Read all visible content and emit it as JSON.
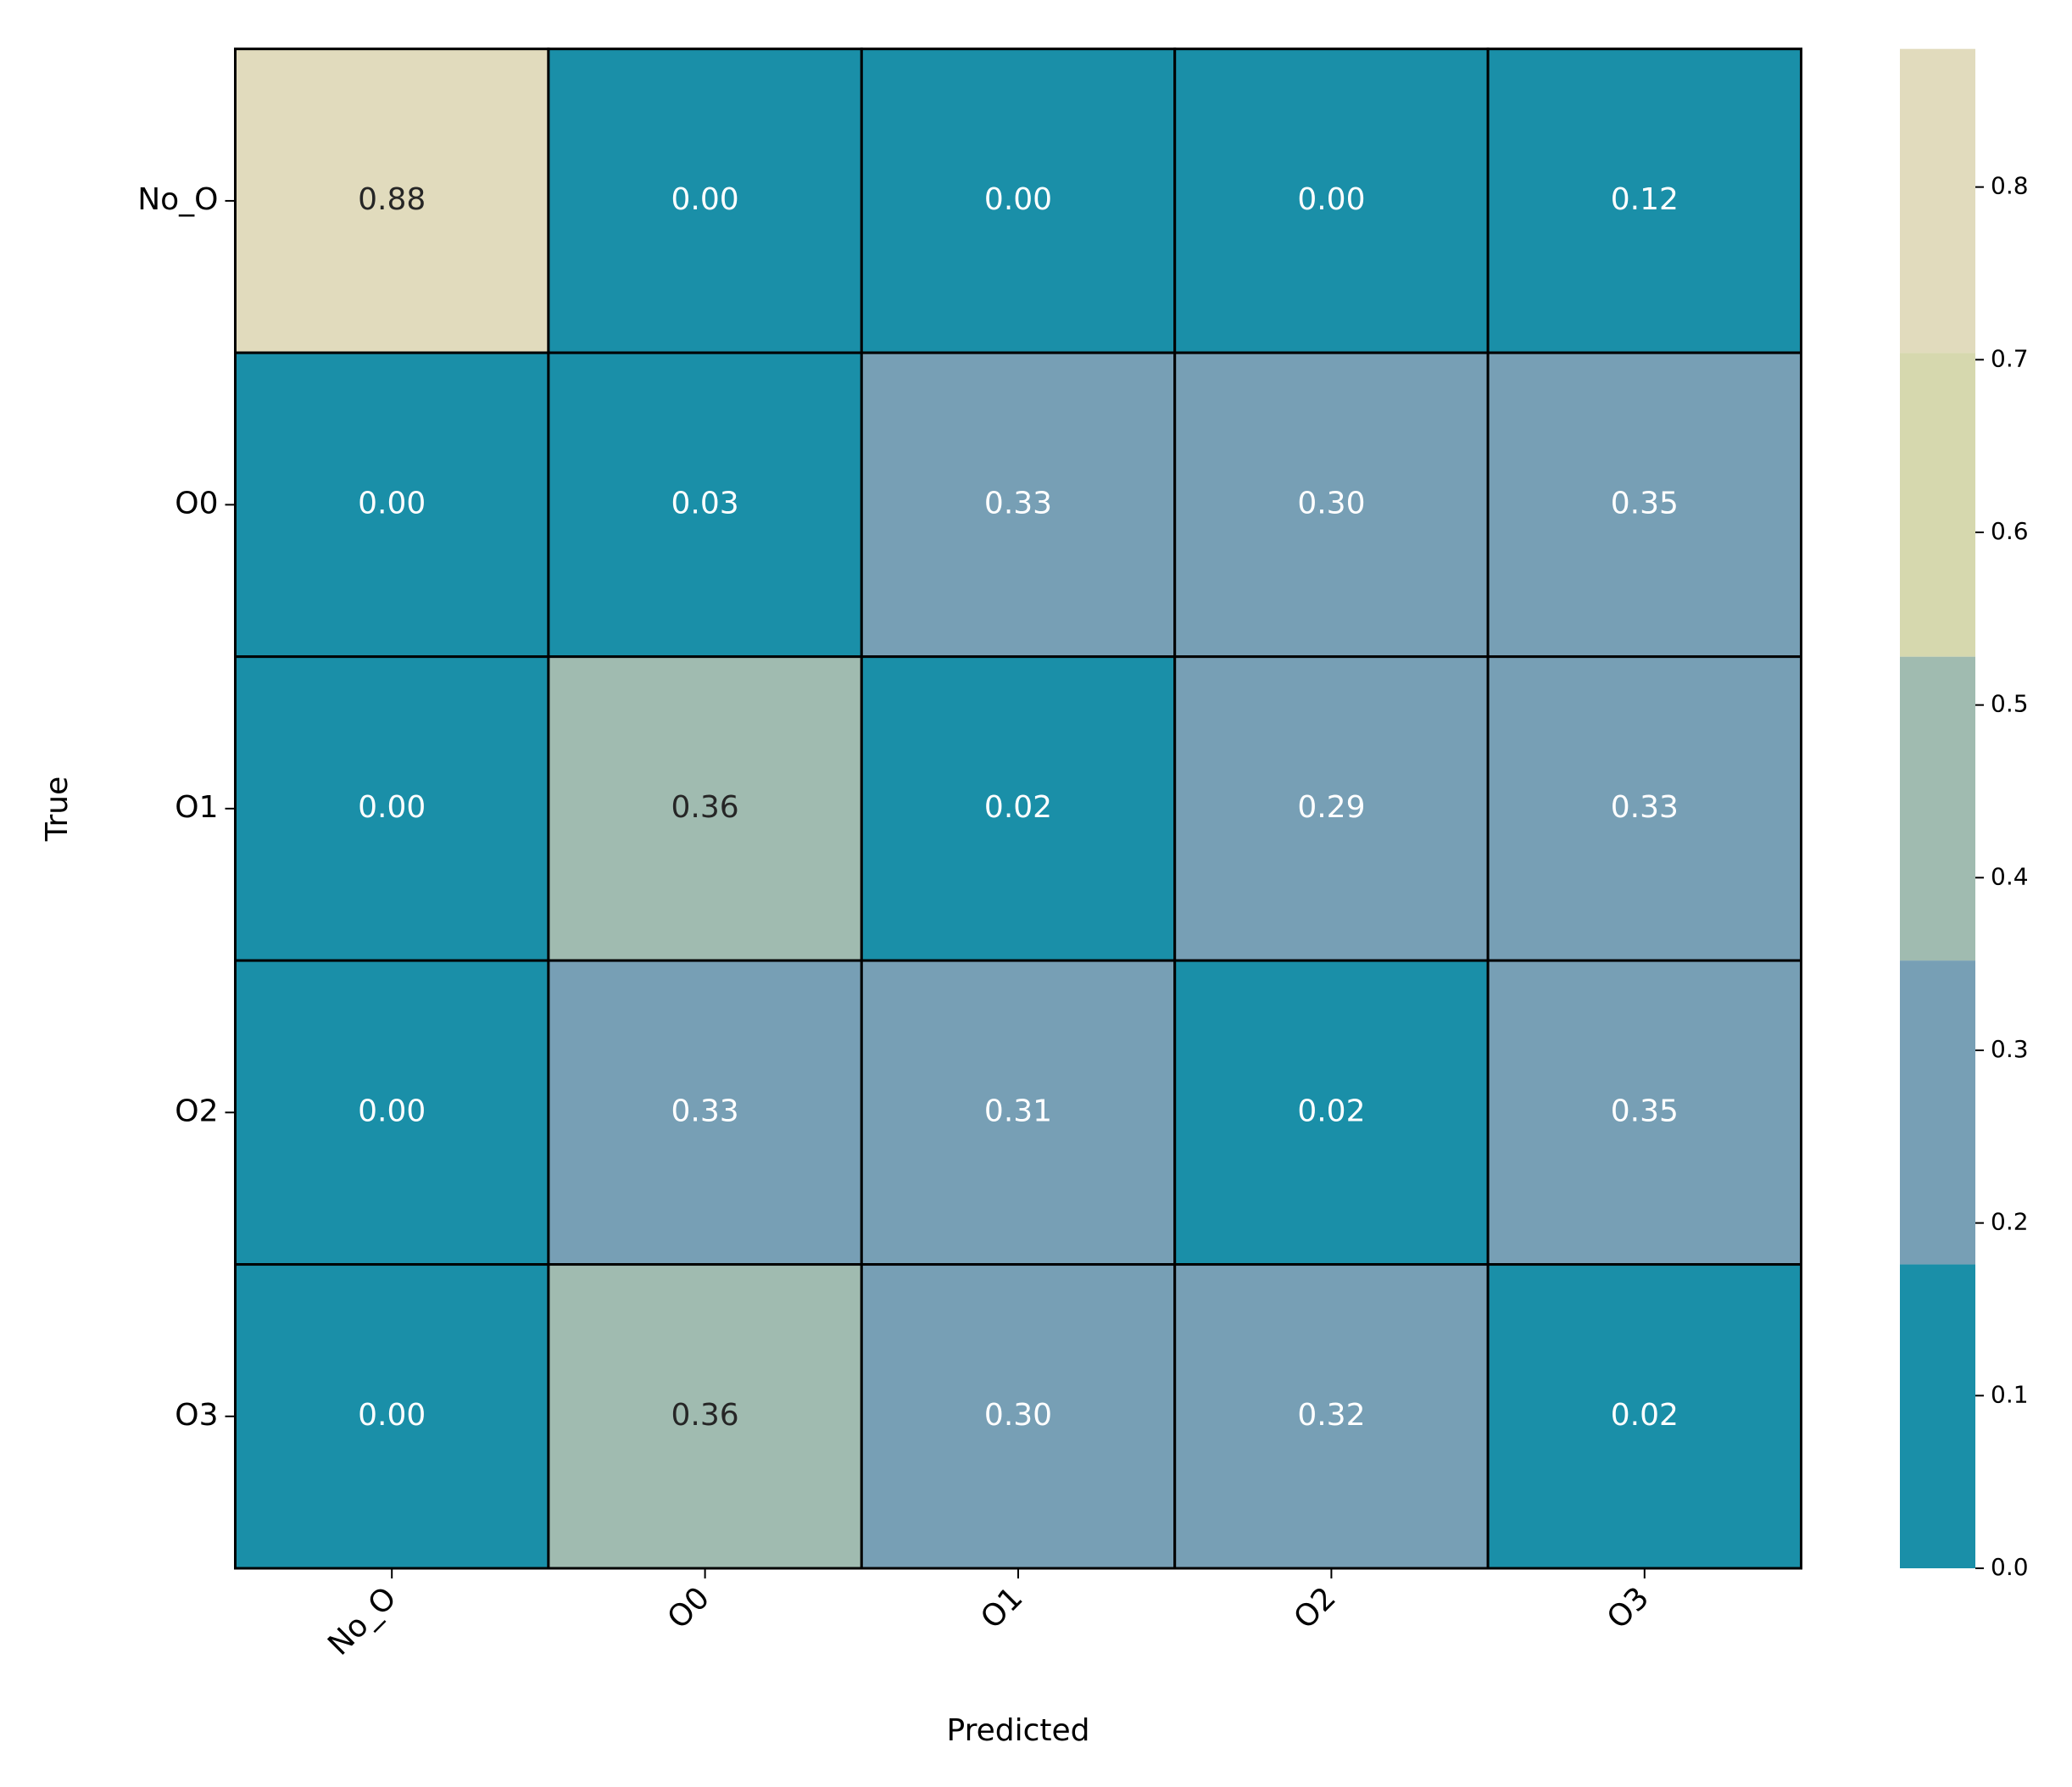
{
  "chart_data": {
    "type": "heatmap",
    "x_label": "Predicted",
    "y_label": "True",
    "x_categories": [
      "No_O",
      "O0",
      "O1",
      "O2",
      "O3"
    ],
    "y_categories": [
      "No_O",
      "O0",
      "O1",
      "O2",
      "O3"
    ],
    "values": [
      [
        0.88,
        0,
        0,
        0,
        0.12
      ],
      [
        0,
        0.03,
        0.33,
        0.3,
        0.35
      ],
      [
        0,
        0.36,
        0.02,
        0.29,
        0.33
      ],
      [
        0,
        0.33,
        0.31,
        0.02,
        0.35
      ],
      [
        0,
        0.36,
        0.3,
        0.32,
        0.02
      ]
    ],
    "value_labels": [
      [
        "0.88",
        "0.00",
        "0.00",
        "0.00",
        "0.12"
      ],
      [
        "0.00",
        "0.03",
        "0.33",
        "0.30",
        "0.35"
      ],
      [
        "0.00",
        "0.36",
        "0.02",
        "0.29",
        "0.33"
      ],
      [
        "0.00",
        "0.33",
        "0.31",
        "0.02",
        "0.35"
      ],
      [
        "0.00",
        "0.36",
        "0.30",
        "0.32",
        "0.02"
      ]
    ],
    "colors": [
      "#1a8fa8",
      "#779fb5",
      "#a0bbb0",
      "#d6d8ae",
      "#e1dbbd"
    ],
    "clim": [
      0,
      0.88
    ],
    "colorbar_ticks": [
      {
        "value": 0,
        "label": "0.0"
      },
      0.1,
      0.2,
      0.3,
      0.4,
      0.5,
      0.6,
      0.7,
      0.8
    ]
  }
}
